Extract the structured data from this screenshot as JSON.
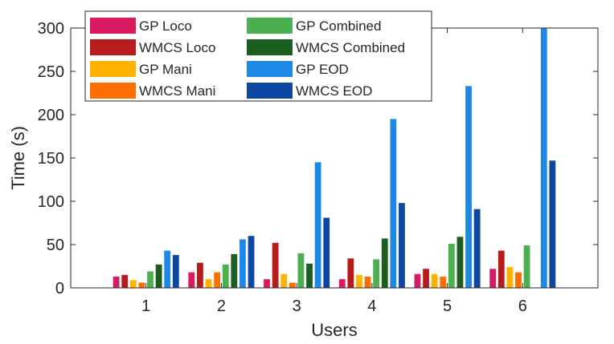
{
  "chart_data": {
    "type": "bar",
    "title": "",
    "xlabel": "Users",
    "ylabel": "Time (s)",
    "categories": [
      "1",
      "2",
      "3",
      "4",
      "5",
      "6"
    ],
    "ylim": [
      0,
      300
    ],
    "yticks": [
      0,
      50,
      100,
      150,
      200,
      250,
      300
    ],
    "grid": false,
    "legend_position": "top-left",
    "series": [
      {
        "name": "GP Loco",
        "color": "#d81b60",
        "values": [
          13,
          18,
          10,
          10,
          16,
          22
        ]
      },
      {
        "name": "WMCS Loco",
        "color": "#b71c1c",
        "values": [
          15,
          29,
          52,
          34,
          22,
          43
        ]
      },
      {
        "name": "GP Mani",
        "color": "#ffb300",
        "values": [
          9,
          10,
          16,
          15,
          16,
          24
        ]
      },
      {
        "name": "WMCS Mani",
        "color": "#ff6f00",
        "values": [
          6,
          18,
          6,
          13,
          13,
          18
        ]
      },
      {
        "name": "GP Combined",
        "color": "#4caf50",
        "values": [
          19,
          27,
          40,
          33,
          51,
          49
        ]
      },
      {
        "name": "WMCS Combined",
        "color": "#1b5e20",
        "values": [
          27,
          39,
          28,
          57,
          59,
          0
        ]
      },
      {
        "name": "GP EOD",
        "color": "#1e88e5",
        "values": [
          43,
          56,
          145,
          195,
          233,
          300
        ]
      },
      {
        "name": "WMCS EOD",
        "color": "#0d47a1",
        "values": [
          38,
          60,
          81,
          98,
          91,
          147
        ]
      }
    ]
  }
}
